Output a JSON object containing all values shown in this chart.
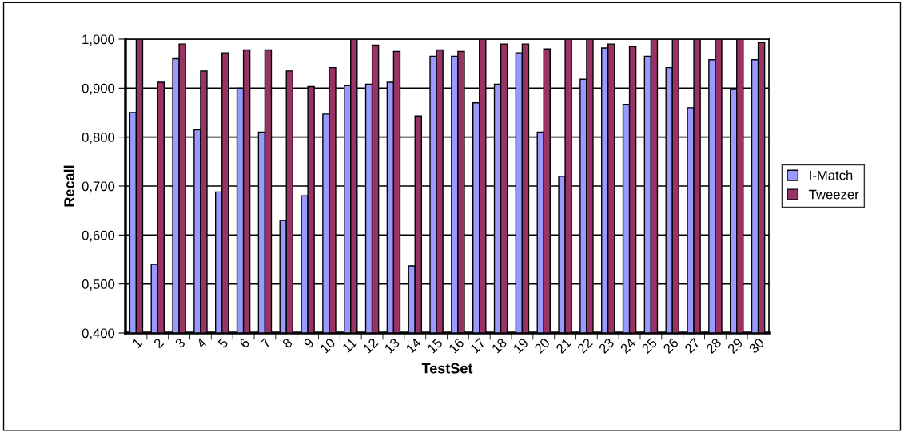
{
  "chart_data": {
    "type": "bar",
    "xlabel": "TestSet",
    "ylabel": "Recall",
    "categories": [
      "1",
      "2",
      "3",
      "4",
      "5",
      "6",
      "7",
      "8",
      "9",
      "10",
      "11",
      "12",
      "13",
      "14",
      "15",
      "16",
      "17",
      "18",
      "19",
      "20",
      "21",
      "22",
      "23",
      "24",
      "25",
      "26",
      "27",
      "28",
      "29",
      "30"
    ],
    "series": [
      {
        "name": "I-Match",
        "color": "#9999ff",
        "values": [
          0.85,
          0.54,
          0.96,
          0.815,
          0.688,
          0.9,
          0.81,
          0.63,
          0.68,
          0.847,
          0.905,
          0.908,
          0.912,
          0.537,
          0.965,
          0.965,
          0.87,
          0.908,
          0.972,
          0.81,
          0.72,
          0.918,
          0.982,
          0.867,
          0.965,
          0.942,
          0.86,
          0.958,
          0.897,
          0.958
        ]
      },
      {
        "name": "Tweezer",
        "color": "#993366",
        "values": [
          1.0,
          0.912,
          0.99,
          0.935,
          0.972,
          0.978,
          0.978,
          0.935,
          0.903,
          0.942,
          1.0,
          0.988,
          0.975,
          0.843,
          0.978,
          0.975,
          1.0,
          0.99,
          0.99,
          0.98,
          1.0,
          1.0,
          0.99,
          0.985,
          1.0,
          1.0,
          1.0,
          1.0,
          1.0,
          0.993
        ]
      }
    ],
    "ylim": [
      0.4,
      1.0
    ],
    "yticks": [
      {
        "value": 0.4,
        "label": "0,400"
      },
      {
        "value": 0.5,
        "label": "0,500"
      },
      {
        "value": 0.6,
        "label": "0,600"
      },
      {
        "value": 0.7,
        "label": "0,700"
      },
      {
        "value": 0.8,
        "label": "0,800"
      },
      {
        "value": 0.9,
        "label": "0,900"
      },
      {
        "value": 1.0,
        "label": "1,000"
      }
    ],
    "grid": "y",
    "legend": "right"
  }
}
